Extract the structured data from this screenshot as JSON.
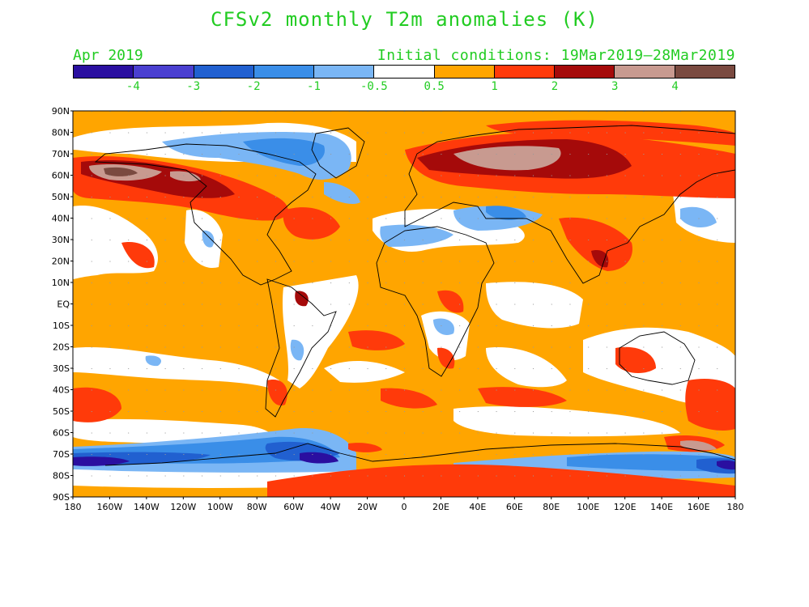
{
  "title": "CFSv2 monthly T2m anomalies (K)",
  "valid_month": "Apr 2019",
  "initial_conditions": "Initial conditions: 19Mar2019—28Mar2019",
  "colorbar": {
    "colors": [
      "#2a0fa0",
      "#4a3fd0",
      "#2160d0",
      "#3a8ee8",
      "#7ab6f5",
      "#ffffff",
      "#ffa500",
      "#ff3a0a",
      "#a50a0a",
      "#c89a90",
      "#7a4a40"
    ],
    "labels": [
      "-4",
      "-3",
      "-2",
      "-1",
      "-0.5",
      "0.5",
      "1",
      "2",
      "3",
      "4"
    ]
  },
  "map": {
    "lat_labels": [
      "90N",
      "80N",
      "70N",
      "60N",
      "50N",
      "40N",
      "30N",
      "20N",
      "10N",
      "EQ",
      "10S",
      "20S",
      "30S",
      "40S",
      "50S",
      "60S",
      "70S",
      "80S",
      "90S"
    ],
    "lon_labels": [
      "180",
      "160W",
      "140W",
      "120W",
      "100W",
      "80W",
      "60W",
      "40W",
      "20W",
      "0",
      "20E",
      "40E",
      "60E",
      "80E",
      "100E",
      "120E",
      "140E",
      "160E",
      "180"
    ]
  }
}
